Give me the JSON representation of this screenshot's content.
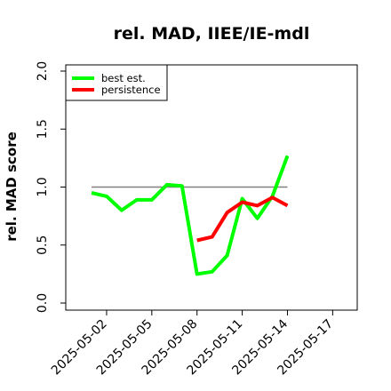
{
  "chart_data": {
    "type": "line",
    "title": "rel. MAD, IIEE/IE-mdl",
    "xlabel": "",
    "ylabel": "rel. MAD score",
    "ylim": [
      0.0,
      2.0
    ],
    "yticks": [
      "0.0",
      "0.5",
      "1.0",
      "1.5",
      "2.0"
    ],
    "x": [
      "2025-05-01",
      "2025-05-02",
      "2025-05-03",
      "2025-05-04",
      "2025-05-05",
      "2025-05-06",
      "2025-05-07",
      "2025-05-08",
      "2025-05-09",
      "2025-05-10",
      "2025-05-11",
      "2025-05-12",
      "2025-05-13",
      "2025-05-14"
    ],
    "xticks": [
      "2025-05-02",
      "2025-05-05",
      "2025-05-08",
      "2025-05-11",
      "2025-05-14",
      "2025-05-17"
    ],
    "reference_line": 1.0,
    "series": [
      {
        "name": "best est.",
        "color": "#00ff00",
        "values": [
          0.95,
          0.92,
          0.8,
          0.89,
          0.89,
          1.02,
          1.01,
          0.25,
          0.27,
          0.41,
          0.9,
          0.73,
          0.92,
          1.27
        ]
      },
      {
        "name": "persistence",
        "color": "#ff0000",
        "values": [
          null,
          null,
          null,
          null,
          null,
          null,
          null,
          0.54,
          0.57,
          0.78,
          0.87,
          0.84,
          0.91,
          0.84
        ]
      }
    ],
    "reference_color": "#808080",
    "legend_position": "top-left",
    "grid": false
  }
}
